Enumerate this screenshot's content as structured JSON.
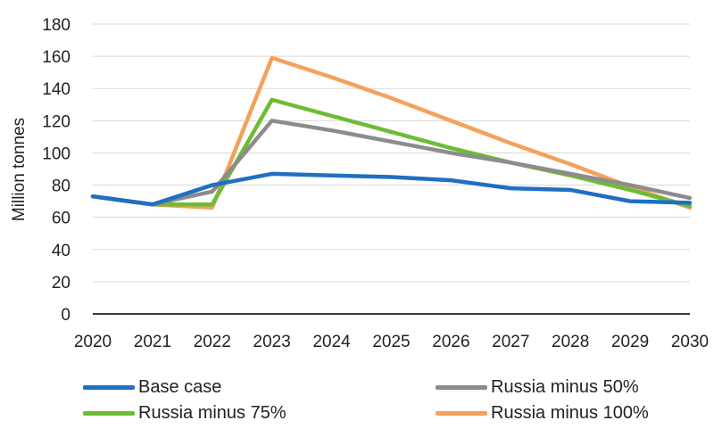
{
  "chart_data": {
    "type": "line",
    "title": "",
    "xlabel": "",
    "ylabel": "Million tonnes",
    "x": [
      "2020",
      "2021",
      "2022",
      "2023",
      "2024",
      "2025",
      "2026",
      "2027",
      "2028",
      "2029",
      "2030"
    ],
    "ylim": [
      0,
      180
    ],
    "yticks": [
      0,
      20,
      40,
      60,
      80,
      100,
      120,
      140,
      160,
      180
    ],
    "grid": true,
    "legend_position": "bottom",
    "series": [
      {
        "name": "Base case",
        "color": "#1f6fc4",
        "values": [
          73,
          68,
          80,
          87,
          86,
          85,
          83,
          78,
          77,
          70,
          69
        ]
      },
      {
        "name": "Russia minus 50%",
        "color": "#8c8c8c",
        "values": [
          73,
          68,
          76,
          120,
          114,
          107,
          100,
          94,
          87,
          80,
          72
        ]
      },
      {
        "name": "Russia minus 75%",
        "color": "#6cbd34",
        "values": [
          73,
          68,
          68,
          133,
          123,
          113,
          103,
          94,
          86,
          77,
          67
        ]
      },
      {
        "name": "Russia minus 100%",
        "color": "#f4a15a",
        "values": [
          73,
          68,
          66,
          159,
          147,
          134,
          120,
          106,
          93,
          79,
          66
        ]
      }
    ]
  }
}
